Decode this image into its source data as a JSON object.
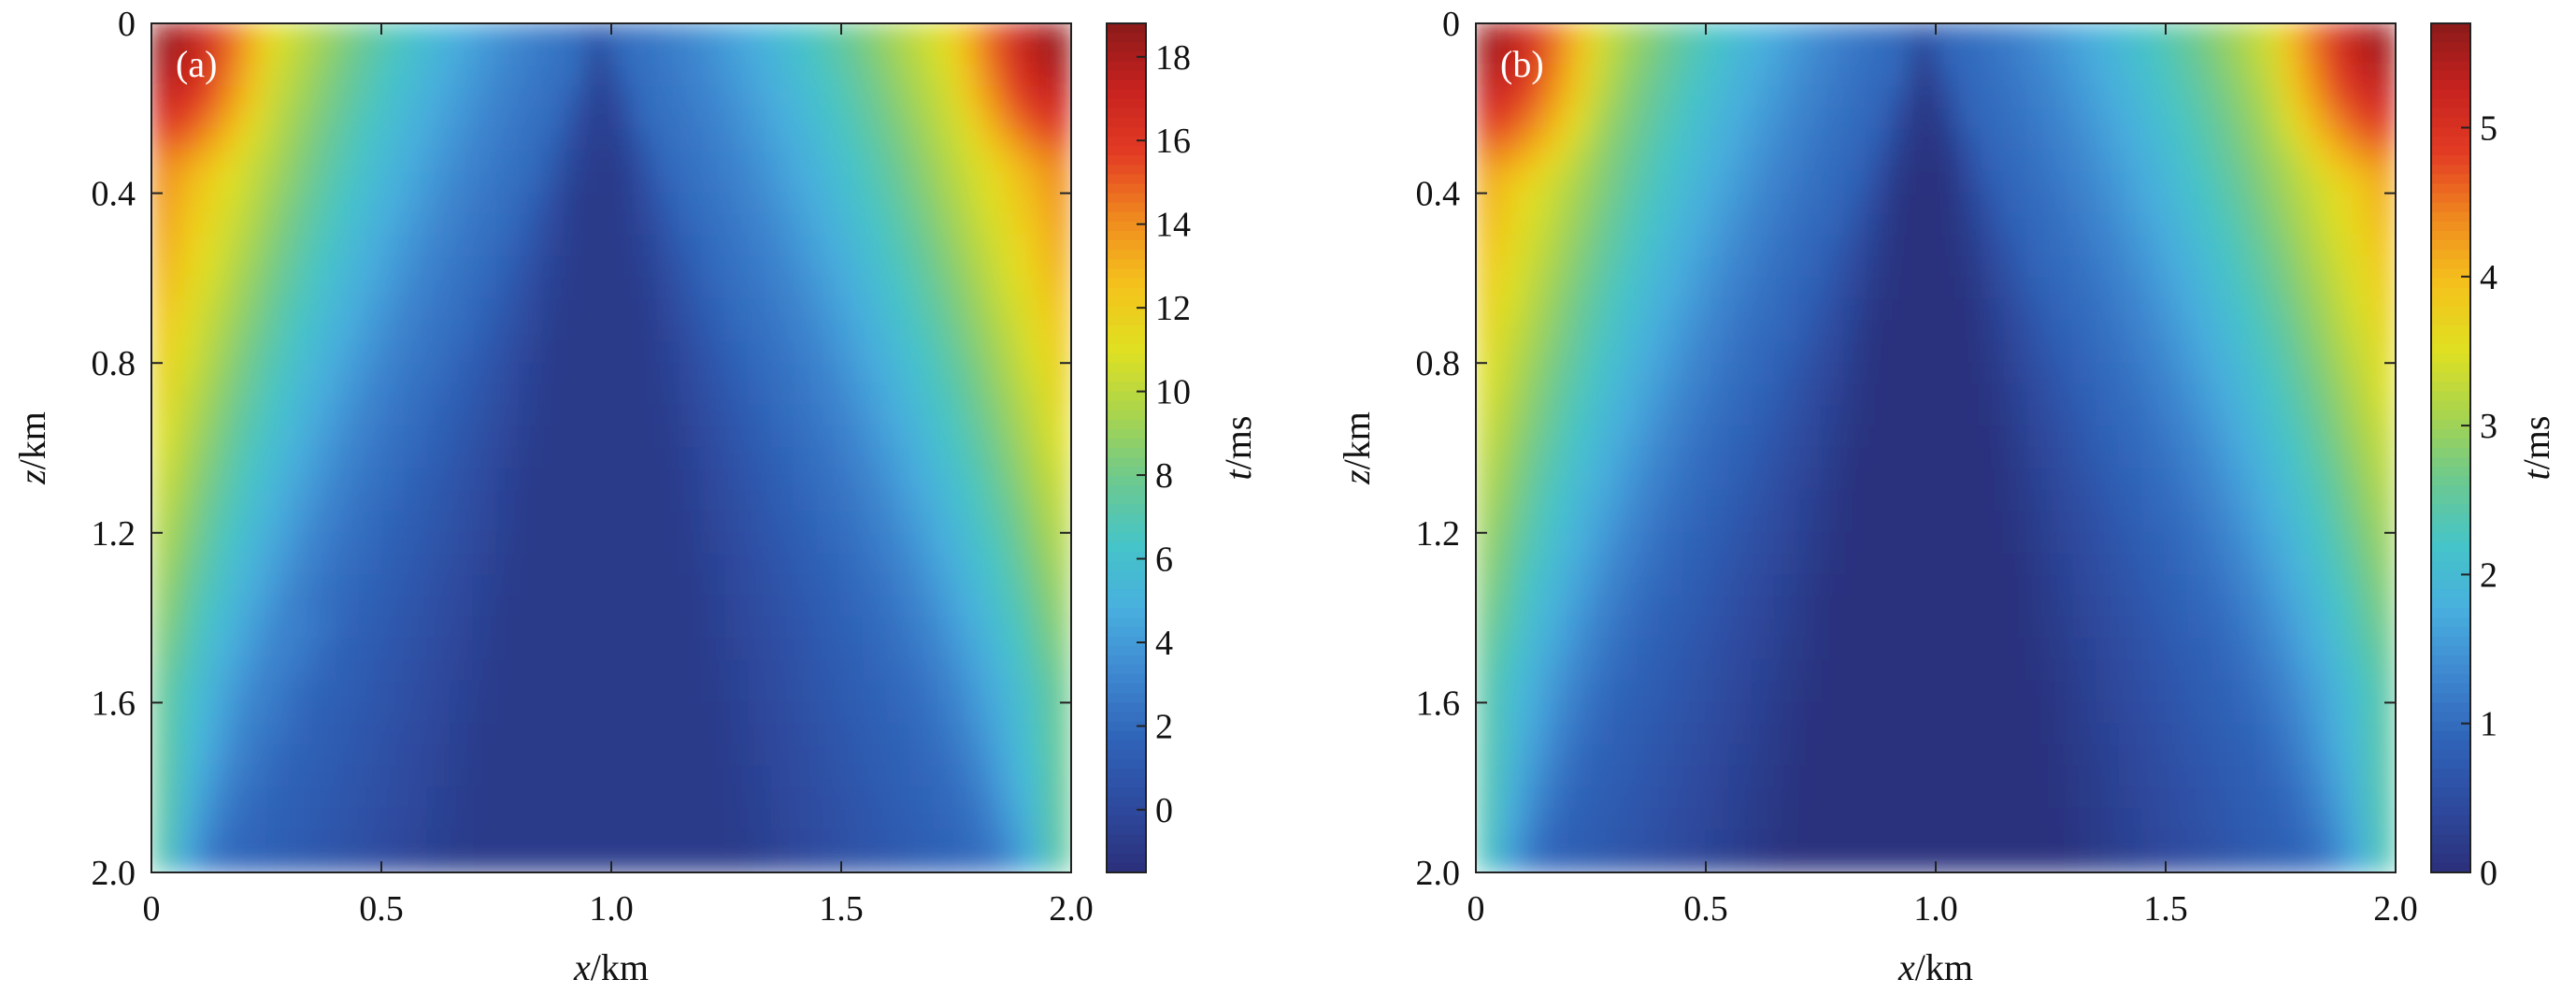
{
  "colors": {
    "colormap": [
      "#2b2f7a",
      "#2d4a9e",
      "#2f63b8",
      "#3e86cf",
      "#48aede",
      "#45c4c9",
      "#6cc98f",
      "#a8d44e",
      "#e0e021",
      "#f4c21c",
      "#f08b1f",
      "#e33c24",
      "#c7221f",
      "#8a1a1a"
    ]
  },
  "chart_data": [
    {
      "type": "heatmap",
      "panel_label": "(a)",
      "xlabel_var": "x",
      "xlabel_unit": "/km",
      "ylabel_var": "z",
      "ylabel_unit": "/km",
      "colorbar_label_var": "t",
      "colorbar_label_unit": "/ms",
      "xlim": [
        0,
        2.0
      ],
      "ylim": [
        0,
        2.0
      ],
      "y_reversed": true,
      "x_ticks": [
        0,
        0.5,
        1.0,
        1.5,
        2.0
      ],
      "x_tick_labels": [
        "0",
        "0.5",
        "1.0",
        "1.5",
        "2.0"
      ],
      "y_ticks": [
        0,
        0.4,
        0.8,
        1.2,
        1.6,
        2.0
      ],
      "y_tick_labels": [
        "0",
        "0.4",
        "0.8",
        "1.2",
        "1.6",
        "2.0"
      ],
      "colorbar_range": [
        -1.5,
        18.8
      ],
      "colorbar_ticks": [
        0,
        2,
        4,
        6,
        8,
        10,
        12,
        14,
        16,
        18
      ],
      "colorbar_tick_labels": [
        "0",
        "2",
        "4",
        "6",
        "8",
        "10",
        "12",
        "14",
        "16",
        "18"
      ],
      "field_model": {
        "grid": [
          40,
          40
        ],
        "apex_x": 0.98,
        "slope": 0.42,
        "corner_peak": 18.6,
        "flank_peak": 16.5,
        "background": 2.0,
        "trough": -0.8,
        "ramp_value": 4.5
      }
    },
    {
      "type": "heatmap",
      "panel_label": "(b)",
      "xlabel_var": "x",
      "xlabel_unit": "/km",
      "ylabel_var": "z",
      "ylabel_unit": "/km",
      "colorbar_label_var": "t",
      "colorbar_label_unit": "/ms",
      "xlim": [
        0,
        2.0
      ],
      "ylim": [
        0,
        2.0
      ],
      "y_reversed": true,
      "x_ticks": [
        0,
        0.5,
        1.0,
        1.5,
        2.0
      ],
      "x_tick_labels": [
        "0",
        "0.5",
        "1.0",
        "1.5",
        "2.0"
      ],
      "y_ticks": [
        0,
        0.4,
        0.8,
        1.2,
        1.6,
        2.0
      ],
      "y_tick_labels": [
        "0",
        "0.4",
        "0.8",
        "1.2",
        "1.6",
        "2.0"
      ],
      "colorbar_range": [
        0,
        5.7
      ],
      "colorbar_ticks": [
        0,
        1,
        2,
        3,
        4,
        5
      ],
      "colorbar_tick_labels": [
        "0",
        "1",
        "2",
        "3",
        "4",
        "5"
      ],
      "field_model": {
        "grid": [
          40,
          40
        ],
        "apex_x": 0.98,
        "slope": 0.42,
        "corner_peak": 5.6,
        "flank_peak": 4.8,
        "background": 0.9,
        "trough": 0.05,
        "ramp_value": 1.6
      }
    }
  ]
}
